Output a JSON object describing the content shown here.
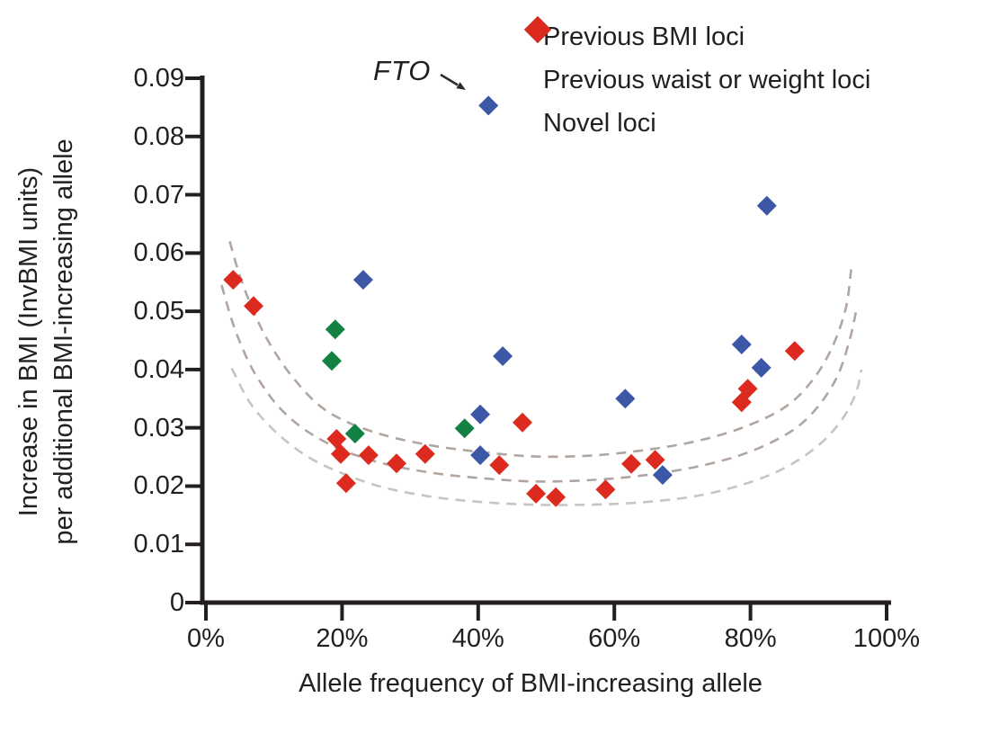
{
  "colors": {
    "blue": "#3b57a6",
    "green": "#128142",
    "red": "#dd2a1e",
    "dash": "#b1a59f",
    "dash_light": "#cbc3be",
    "axis": "#231f20",
    "arrow": "#2a2a2a",
    "background": "#ffffff"
  },
  "legend": {
    "items": [
      {
        "label": "Previous BMI loci",
        "color": "#3b57a6"
      },
      {
        "label": "Previous waist or weight loci",
        "color": "#128142"
      },
      {
        "label": "Novel loci",
        "color": "#dd2a1e"
      }
    ]
  },
  "chart_data": {
    "type": "scatter",
    "title": "",
    "xlabel": "Allele frequency of BMI-increasing allele",
    "ylabel": [
      "Increase in BMI (InvBMI units)",
      "per additional BMI-increasing allele"
    ],
    "xlim": [
      0,
      100
    ],
    "ylim": [
      0,
      0.09
    ],
    "x_unit": "%",
    "grid": false,
    "legend_position": "top-right",
    "x_ticks": [
      {
        "value": 0,
        "label": "0%"
      },
      {
        "value": 20,
        "label": "20%"
      },
      {
        "value": 40,
        "label": "40%"
      },
      {
        "value": 60,
        "label": "60%"
      },
      {
        "value": 80,
        "label": "80%"
      },
      {
        "value": 100,
        "label": "100%"
      }
    ],
    "y_ticks": [
      {
        "value": 0,
        "label": "0"
      },
      {
        "value": 0.01,
        "label": "0.01"
      },
      {
        "value": 0.02,
        "label": "0.02"
      },
      {
        "value": 0.03,
        "label": "0.03"
      },
      {
        "value": 0.04,
        "label": "0.04"
      },
      {
        "value": 0.05,
        "label": "0.05"
      },
      {
        "value": 0.06,
        "label": "0.06"
      },
      {
        "value": 0.07,
        "label": "0.07"
      },
      {
        "value": 0.08,
        "label": "0.08"
      },
      {
        "value": 0.09,
        "label": "0.09"
      }
    ],
    "series": [
      {
        "name": "Previous BMI loci",
        "color": "#3b57a6",
        "marker": "diamond",
        "points": [
          [
            23.1,
            0.0554
          ],
          [
            41.5,
            0.0853
          ],
          [
            43.6,
            0.0423
          ],
          [
            40.3,
            0.0323
          ],
          [
            40.3,
            0.0253
          ],
          [
            61.6,
            0.035
          ],
          [
            67.1,
            0.0219
          ],
          [
            82.4,
            0.0681
          ],
          [
            78.7,
            0.0443
          ],
          [
            81.6,
            0.0403
          ]
        ]
      },
      {
        "name": "Previous waist or weight loci",
        "color": "#128142",
        "marker": "diamond",
        "points": [
          [
            19.0,
            0.0469
          ],
          [
            18.5,
            0.0415
          ],
          [
            21.9,
            0.029
          ],
          [
            38.0,
            0.0299
          ]
        ]
      },
      {
        "name": "Novel loci",
        "color": "#dd2a1e",
        "marker": "diamond",
        "points": [
          [
            4.0,
            0.0554
          ],
          [
            7.0,
            0.0509
          ],
          [
            19.2,
            0.0281
          ],
          [
            19.8,
            0.0255
          ],
          [
            20.6,
            0.0205
          ],
          [
            23.9,
            0.0253
          ],
          [
            28.0,
            0.0239
          ],
          [
            32.2,
            0.0255
          ],
          [
            43.1,
            0.0236
          ],
          [
            46.5,
            0.0309
          ],
          [
            48.5,
            0.0187
          ],
          [
            51.4,
            0.0181
          ],
          [
            58.7,
            0.0194
          ],
          [
            62.5,
            0.0238
          ],
          [
            66.0,
            0.0245
          ],
          [
            78.7,
            0.0344
          ],
          [
            79.6,
            0.0367
          ],
          [
            86.5,
            0.0432
          ]
        ]
      }
    ],
    "power_curves": [
      {
        "name": "power-curve-upper",
        "color": "#b1a59f",
        "points": [
          [
            3.5,
            0.062
          ],
          [
            5,
            0.056
          ],
          [
            7,
            0.05
          ],
          [
            9,
            0.0452
          ],
          [
            12,
            0.0398
          ],
          [
            16,
            0.0345
          ],
          [
            20,
            0.0314
          ],
          [
            26,
            0.0288
          ],
          [
            33,
            0.027
          ],
          [
            40,
            0.0259
          ],
          [
            48,
            0.0251
          ],
          [
            56,
            0.0252
          ],
          [
            64,
            0.0261
          ],
          [
            72,
            0.0277
          ],
          [
            79,
            0.0301
          ],
          [
            85,
            0.0335
          ],
          [
            89,
            0.038
          ],
          [
            92,
            0.0438
          ],
          [
            94,
            0.0505
          ],
          [
            94.8,
            0.0572
          ]
        ]
      },
      {
        "name": "power-curve-middle",
        "color": "#b1a59f",
        "points": [
          [
            2.3,
            0.0545
          ],
          [
            4,
            0.0478
          ],
          [
            6,
            0.042
          ],
          [
            8,
            0.0378
          ],
          [
            11,
            0.0332
          ],
          [
            15,
            0.0293
          ],
          [
            20,
            0.0262
          ],
          [
            26,
            0.0239
          ],
          [
            33,
            0.0223
          ],
          [
            40,
            0.0214
          ],
          [
            48,
            0.0208
          ],
          [
            56,
            0.021
          ],
          [
            64,
            0.0218
          ],
          [
            72,
            0.0233
          ],
          [
            79,
            0.0255
          ],
          [
            85,
            0.0287
          ],
          [
            89,
            0.0324
          ],
          [
            92.5,
            0.0382
          ],
          [
            94.5,
            0.0448
          ],
          [
            95.6,
            0.0505
          ]
        ]
      },
      {
        "name": "power-curve-lower",
        "color": "#cbc3be",
        "points": [
          [
            3.8,
            0.0402
          ],
          [
            6,
            0.0352
          ],
          [
            8,
            0.032
          ],
          [
            11,
            0.0285
          ],
          [
            15,
            0.025
          ],
          [
            20,
            0.0222
          ],
          [
            26,
            0.0198
          ],
          [
            33,
            0.0182
          ],
          [
            40,
            0.0173
          ],
          [
            48,
            0.0168
          ],
          [
            56,
            0.0168
          ],
          [
            64,
            0.0172
          ],
          [
            72,
            0.0183
          ],
          [
            79,
            0.0203
          ],
          [
            85,
            0.0231
          ],
          [
            90,
            0.027
          ],
          [
            93.5,
            0.0315
          ],
          [
            95.5,
            0.036
          ],
          [
            96.3,
            0.04
          ]
        ]
      }
    ],
    "annotation": {
      "text": "FTO",
      "points_to": {
        "x": 41.5,
        "y": 0.0853
      }
    }
  }
}
